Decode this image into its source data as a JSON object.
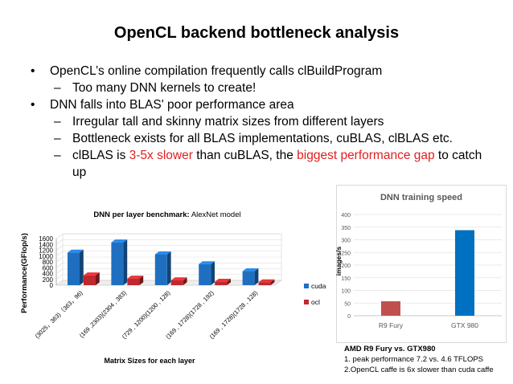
{
  "slide": {
    "title": "OpenCL backend bottleneck analysis",
    "bullets": [
      {
        "level": 1,
        "parts": [
          {
            "text": "OpenCL’s online compilation frequently calls clBuildProgram",
            "color": ""
          }
        ]
      },
      {
        "level": 2,
        "parts": [
          {
            "text": "Too many DNN kernels to create!",
            "color": ""
          }
        ]
      },
      {
        "level": 1,
        "parts": [
          {
            "text": "DNN falls into BLAS'  poor performance area",
            "color": ""
          }
        ]
      },
      {
        "level": 2,
        "parts": [
          {
            "text": "Irregular tall and skinny matrix sizes from different layers",
            "color": ""
          }
        ]
      },
      {
        "level": 2,
        "parts": [
          {
            "text": "Bottleneck exists for all BLAS implementations, cuBLAS, clBLAS etc.",
            "color": ""
          }
        ]
      },
      {
        "level": 2,
        "parts": [
          {
            "text": "clBLAS is ",
            "color": ""
          },
          {
            "text": "3-5x slower",
            "color": "#e02020"
          },
          {
            "text": " than cuBLAS, the ",
            "color": ""
          },
          {
            "text": "biggest performance gap",
            "color": "#e02020"
          },
          {
            "text": " to catch up",
            "color": ""
          }
        ]
      }
    ],
    "bullet_glyph": "•",
    "dash_glyph": "–"
  },
  "chart_data": [
    {
      "type": "bar",
      "title_bold": "DNN per layer benchmark:",
      "title_rest": " AlexNet model",
      "xlabel": "Matrix Sizes for each layer",
      "ylabel": "Performance(GFlop/s)",
      "categories": [
        "(3025，363)（363，96)",
        "(169 ,2303)(2304 , 383)",
        "(729 , 1200)(1200 , 128)",
        "(169 , 1728)(1728 , 192)",
        "(169 , 1728)(1728 , 128)"
      ],
      "series": [
        {
          "name": "cuda",
          "values": [
            1120,
            1470,
            1060,
            720,
            480
          ],
          "color": "#1f6fc1"
        },
        {
          "name": "ocl",
          "values": [
            340,
            230,
            170,
            120,
            100
          ],
          "color": "#c0282d"
        }
      ],
      "yticks": [
        0,
        200,
        400,
        600,
        800,
        1000,
        1200,
        1400,
        1600
      ],
      "ylim": [
        0,
        1600
      ],
      "style": "3d"
    },
    {
      "type": "bar",
      "title": "DNN training speed",
      "ylabel": "images/s",
      "categories": [
        "R9 Fury",
        "GTX 980"
      ],
      "values": [
        57,
        338
      ],
      "colors": [
        "#c0504d",
        "#0070c0"
      ],
      "yticks": [
        0,
        50,
        100,
        150,
        200,
        250,
        300,
        350,
        400
      ],
      "ylim": [
        0,
        400
      ]
    }
  ],
  "note": {
    "heading": "AMD R9 Fury vs. GTX980",
    "lines": [
      "1. peak performance 7.2 vs. 4.6 TFLOPS",
      "2.OpenCL caffe is 6x slower than cuda caffe"
    ]
  }
}
